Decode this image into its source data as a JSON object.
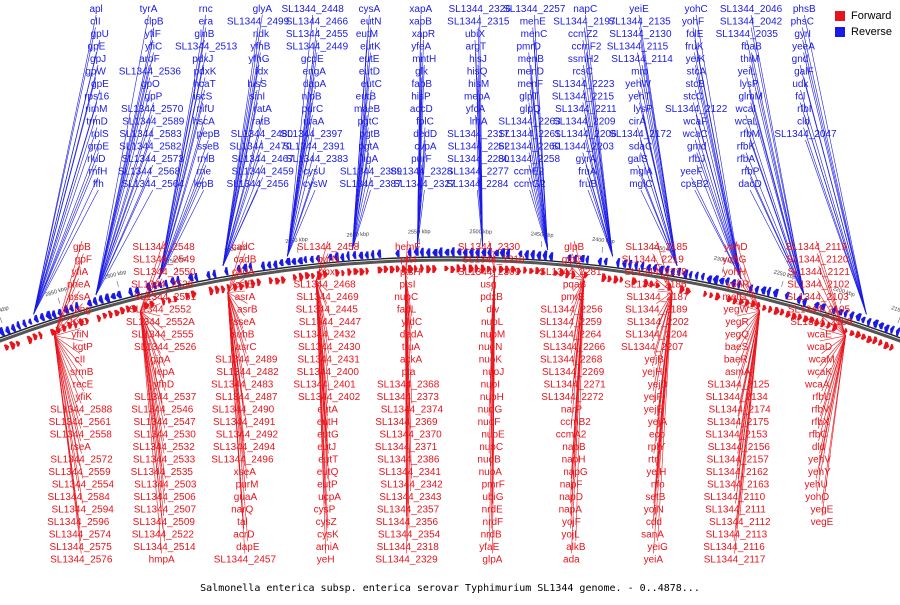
{
  "title": "Salmonella enterica subsp. enterica serovar Typhimurium SL1344 genome. - 0..4878...",
  "legend": [
    {
      "label": "Forward",
      "color": "#e8141c"
    },
    {
      "label": "Reverse",
      "color": "#1a1ae6"
    }
  ],
  "colors": {
    "forward": "#e8141c",
    "reverse": "#1a1ae6",
    "backbone": "#555555"
  },
  "scale_ticks": [
    "2900 kbp",
    "2850 kbp",
    "2800 kbp",
    "2750 kbp",
    "2700 kbp",
    "2650 kbp",
    "2600 kbp",
    "2550 kbp",
    "2500 kbp",
    "2450 kbp",
    "2400 kbp",
    "2350 kbp",
    "2300 kbp",
    "2250 kbp",
    "2200 kbp",
    "2150 kbp"
  ],
  "reverse_genes": [
    "apl",
    "cII",
    "gpU",
    "gpE",
    "gpJ",
    "gpW",
    "gpE",
    "rps16",
    "rimM",
    "trmD",
    "rplS",
    "grpE",
    "rluD",
    "rnfH",
    "ffh",
    "tyrA",
    "clpB",
    "yfiF",
    "yfiC",
    "aroF",
    "SL1344_2536",
    "gpO",
    "gpP",
    "SL1344_2570",
    "SL1344_2589",
    "SL1344_2583",
    "SL1344_2582",
    "SL1344_2573",
    "SL1344_2568",
    "SL1344_2564",
    "rnc",
    "era",
    "glnB",
    "SL1344_2513",
    "pdxJ",
    "pdxK",
    "hcaT",
    "iscS",
    "nifU",
    "hscA",
    "pepB",
    "sseB",
    "rnlB",
    "rne",
    "lepB",
    "glyA",
    "SL1344_2499",
    "ndk",
    "yfhB",
    "yfhG",
    "fdx",
    "hisS",
    "sinI",
    "ratA",
    "ratB",
    "SL1344_2480",
    "SL1344_2470",
    "SL1344_2467",
    "SL1344_2459",
    "SL1344_2456",
    "SL1344_2448",
    "SL1344_2466",
    "SL1344_2455",
    "SL1344_2449",
    "gcpE",
    "engA",
    "dapA",
    "nlpB",
    "purC",
    "uraA",
    "SL1344_2397",
    "SL1344_2391",
    "SL1344_2383",
    "cysU",
    "cysW",
    "cysA",
    "eutN",
    "eutM",
    "eutK",
    "eutE",
    "eutD",
    "eutC",
    "eutB",
    "maeB",
    "pgtC",
    "pgtB",
    "pgtA",
    "ligA",
    "SL1344_2389",
    "SL1344_2387",
    "xapA",
    "xapB",
    "xapR",
    "yfeA",
    "mntH",
    "glk",
    "fabB",
    "hisP",
    "accD",
    "folC",
    "dedD",
    "cvpA",
    "purF",
    "SL1344_2328",
    "SL1344_2327",
    "SL1344_2326",
    "SL1344_2315",
    "ubiX",
    "argT",
    "hisJ",
    "hisQ",
    "hisM",
    "mepA",
    "yfcA",
    "lrhA",
    "SL1344_2317",
    "SL1344_2262",
    "SL1344_2280",
    "SL1344_2277",
    "SL1344_2284",
    "SL1344_2257",
    "menE",
    "menC",
    "pmrD",
    "menB",
    "menD",
    "menF",
    "glpT",
    "glpQ",
    "SL1344_2263",
    "SL1344_2261",
    "SL1344_2260",
    "SL1344_2258",
    "ccmE2",
    "ccmG2",
    "napC",
    "SL1344_2197",
    "ccmZ2",
    "ccmF2",
    "ssmH2",
    "rcsC",
    "SL1344_2223",
    "SL1344_2215",
    "SL1344_2211",
    "SL1344_2209",
    "SL1344_2206",
    "SL1344_2203",
    "gyrA",
    "fruA",
    "fruB",
    "yeiE",
    "SL1344_2135",
    "SL1344_2130",
    "SL1344_2115",
    "SL1344_2114",
    "mrp",
    "yehW",
    "yehT",
    "lysP",
    "cirA",
    "SL1344_2172",
    "sdaC",
    "galS",
    "mglA",
    "mglC",
    "yohC",
    "yohF",
    "folE",
    "fruK",
    "yeiK",
    "stcA",
    "stcB",
    "stcC",
    "SL1344_2122",
    "wcaF",
    "wcaC",
    "gmd",
    "rfbJ",
    "yeeF",
    "cpsB2",
    "SL1344_2046",
    "SL1344_2042",
    "SL1344_2035",
    "fbaB",
    "thiM",
    "yeiL",
    "lysP",
    "glmM",
    "wcaI",
    "wcaL",
    "rfbM",
    "rfbK",
    "rfbA",
    "rfbP",
    "dacD",
    "phsB",
    "phsC",
    "gyrI",
    "yeeA",
    "gnd",
    "galF",
    "udk",
    "fcl",
    "rfbI",
    "cld",
    "SL1344_2047"
  ],
  "forward_genes": [
    "gpB",
    "gpF",
    "yfiA",
    "pheA",
    "pssA",
    "ung",
    "trxC",
    "yfiN",
    "kgtP",
    "cII",
    "srmB",
    "recE",
    "yfiK",
    "SL1344_2588",
    "SL1344_2561",
    "SL1344_2558",
    "rseA",
    "SL1344_2572",
    "SL1344_2559",
    "SL1344_2554",
    "SL1344_2584",
    "SL1344_2594",
    "SL1344_2596",
    "SL1344_2574",
    "SL1344_2575",
    "SL1344_2576",
    "SL1344_2548",
    "SL1344_2549",
    "SL1344_2550",
    "SL1344_2538",
    "SL1344_2551",
    "SL1344_2552",
    "SL1344_2552A",
    "SL1344_2555",
    "SL1344_2526",
    "gipA",
    "lepA",
    "yfhD",
    "SL1344_2537",
    "SL1344_2546",
    "SL1344_2547",
    "SL1344_2530",
    "SL1344_2532",
    "SL1344_2533",
    "SL1344_2535",
    "SL1344_2503",
    "SL1344_2506",
    "SL1344_2507",
    "SL1344_2509",
    "SL1344_2522",
    "SL1344_2514",
    "hmpA",
    "cadC",
    "cadB",
    "cadA",
    "csiE",
    "asrA",
    "asrB",
    "sseA",
    "suhB",
    "asrC",
    "SL1344_2489",
    "SL1344_2482",
    "SL1344_2483",
    "SL1344_2487",
    "SL1344_2490",
    "SL1344_2491",
    "SL1344_2492",
    "SL1344_2494",
    "SL1344_2496",
    "xseA",
    "purM",
    "guaA",
    "narQ",
    "tal",
    "acrD",
    "dapE",
    "SL1344_2457",
    "SL1344_2458",
    "purN",
    "ppx",
    "SL1344_2468",
    "SL1344_2469",
    "SL1344_2445",
    "SL1344_2447",
    "SL1344_2432",
    "SL1344_2430",
    "SL1344_2431",
    "SL1344_2400",
    "SL1344_2401",
    "SL1344_2402",
    "eutA",
    "eutH",
    "eutG",
    "eutJ",
    "eutT",
    "eutQ",
    "eutP",
    "ucpA",
    "cysP",
    "cysZ",
    "cysK",
    "amiA",
    "yeH",
    "hemF",
    "ptsI",
    "ptsH",
    "ptsI",
    "nupC",
    "fadL",
    "yfdC",
    "dedA",
    "truA",
    "ackA",
    "pta",
    "SL1344_2368",
    "SL1344_2373",
    "SL1344_2374",
    "SL1344_2369",
    "SL1344_2370",
    "SL1344_2371",
    "SL1344_2386",
    "SL1344_2341",
    "SL1344_2342",
    "SL1344_2343",
    "SL1344_2357",
    "SL1344_2356",
    "SL1344_2354",
    "SL1344_2318",
    "SL1344_2329",
    "SL1344_2330",
    "SL1344_2310",
    "SL1344_2309",
    "usg",
    "pdxB",
    "div",
    "nuoL",
    "nuoM",
    "nuoN",
    "nuoK",
    "nuoJ",
    "nuoI",
    "nuoH",
    "nuoG",
    "nuoF",
    "nuoE",
    "nuoC",
    "nuoB",
    "nuoA",
    "pmrF",
    "ubiG",
    "nrdE",
    "nrdF",
    "nrdB",
    "yfaE",
    "glpA",
    "glpB",
    "glpC",
    "SL1344_2281",
    "pqaB",
    "pmrE",
    "SL1344_2256",
    "SL1344_2259",
    "SL1344_2264",
    "SL1344_2266",
    "SL1344_2268",
    "SL1344_2269",
    "SL1344_2271",
    "SL1344_2272",
    "narP",
    "ccmB2",
    "ccmA2",
    "napB",
    "napH",
    "napG",
    "napF",
    "napD",
    "napA",
    "yojF",
    "yojL",
    "alkB",
    "ada",
    "SL1344_2185",
    "SL1344_2219",
    "SL1344_2218",
    "SL1344_2186",
    "SL1344_2187",
    "SL1344_2189",
    "SL1344_2202",
    "SL1344_2204",
    "SL1344_2207",
    "yejB",
    "yejH",
    "yejD",
    "yejF",
    "yejE",
    "yejA",
    "eco",
    "rplY",
    "rtn",
    "yeiH",
    "nfo",
    "setB",
    "yojN",
    "cdd",
    "sanA",
    "yeiG",
    "yeiA",
    "yohD",
    "yohG",
    "yohH",
    "yohR",
    "metG",
    "yegW",
    "yegR",
    "yegQ",
    "baeS",
    "baeR",
    "asmA",
    "SL1344_2125",
    "SL1344_2134",
    "SL1344_2174",
    "SL1344_2175",
    "SL1344_2153",
    "SL1344_2156",
    "SL1344_2157",
    "SL1344_2162",
    "SL1344_2163",
    "SL1344_2110",
    "SL1344_2111",
    "SL1344_2112",
    "SL1344_2113",
    "SL1344_2116",
    "SL1344_2117",
    "SL1344_2119",
    "SL1344_2120",
    "SL1344_2121",
    "SL1344_2102",
    "SL1344_2103",
    "SL1344_2105",
    "SL1344_2109",
    "wcaE",
    "wcaD",
    "wcaM",
    "wcaK",
    "wcaA",
    "rfbU",
    "rfbV",
    "rfbX",
    "rfbC",
    "dld",
    "yehV",
    "yehY",
    "yehU",
    "yohO",
    "yegE",
    "vegE"
  ]
}
